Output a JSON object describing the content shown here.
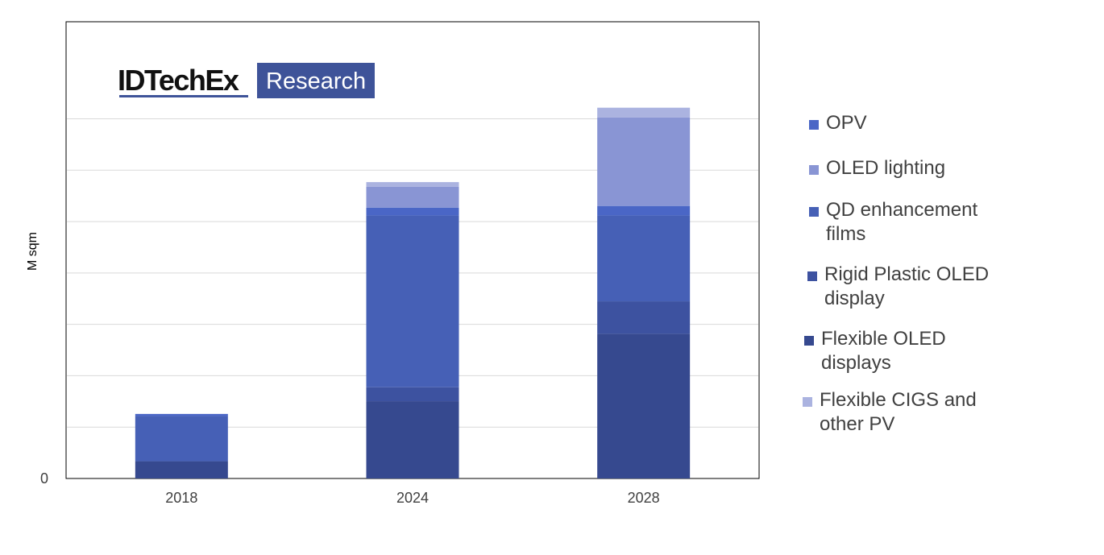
{
  "chart_data": {
    "type": "bar",
    "stacked": true,
    "ylabel": "M sqm",
    "xlabel": "",
    "ytick_labels": [
      "0"
    ],
    "grid": true,
    "legend_position": "right",
    "categories": [
      "2018",
      "2024",
      "2028"
    ],
    "ylim": [
      0,
      100
    ],
    "series": [
      {
        "name": "Flexible OLED displays",
        "color": "#36498F",
        "values": [
          4.2,
          18.8,
          35.2
        ]
      },
      {
        "name": "Rigid Plastic OLED display",
        "color": "#3D52A0",
        "values": [
          0,
          3.4,
          7.9
        ]
      },
      {
        "name": "QD enhancement films",
        "color": "#4660B6",
        "values": [
          11,
          41.8,
          20.9
        ]
      },
      {
        "name": "OPV",
        "color": "#4A66C6",
        "values": [
          0.5,
          1.9,
          2.3
        ]
      },
      {
        "name": "OLED lighting",
        "color": "#8995D4",
        "values": [
          0,
          5.1,
          21.5
        ]
      },
      {
        "name": "Flexible CIGS and other PV",
        "color": "#ABB3E0",
        "values": [
          0,
          1.1,
          2.4
        ]
      }
    ]
  },
  "logo": {
    "brand": "IDTechEx",
    "tag": "Research",
    "tag_bg": "#3E5399",
    "underline": "#3E5399"
  },
  "legend": {
    "items": [
      {
        "label": "OPV",
        "color": "#4A66C6"
      },
      {
        "label": "OLED lighting",
        "color": "#8995D4"
      },
      {
        "label": "QD enhancement\nfilms",
        "color": "#4660B6"
      },
      {
        "label": "Rigid Plastic OLED\ndisplay",
        "color": "#3D52A0"
      },
      {
        "label": "Flexible OLED\ndisplays",
        "color": "#36498F"
      },
      {
        "label": "Flexible CIGS and\nother PV",
        "color": "#ABB3E0"
      }
    ]
  }
}
